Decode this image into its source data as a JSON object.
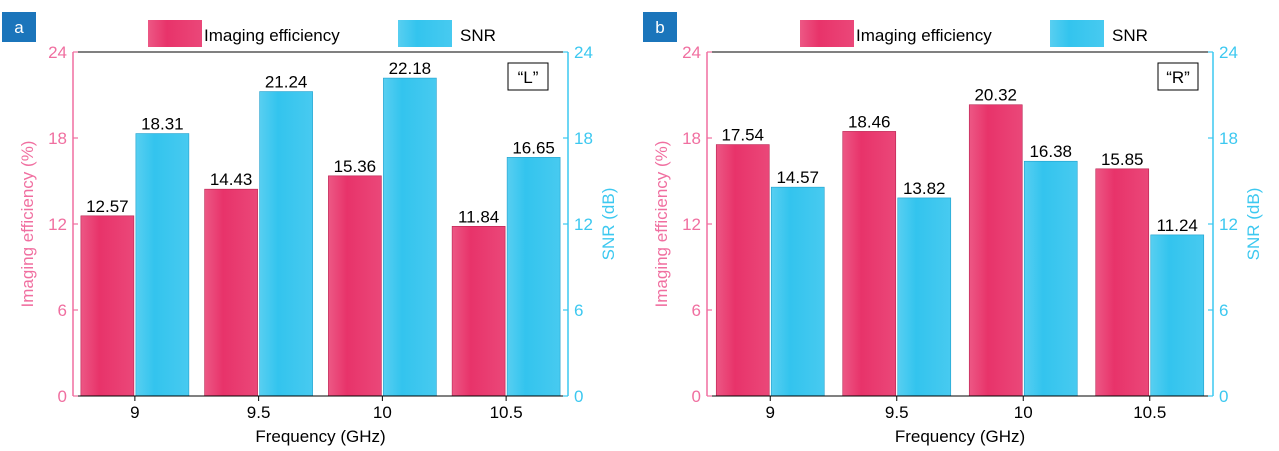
{
  "colors": {
    "imaging": "#e8336a",
    "imaging_axis": "#f06fa0",
    "snr": "#33c4ee",
    "snr_axis": "#3cc8f0",
    "panel_tag_bg": "#1b75bb"
  },
  "chart_data": [
    {
      "type": "bar",
      "panel_label": "a",
      "inset_label": "“L”",
      "categories": [
        "9",
        "9.5",
        "10",
        "10.5"
      ],
      "series": [
        {
          "name": "Imaging efficiency",
          "axis": "left",
          "values": [
            12.57,
            14.43,
            15.36,
            11.84
          ]
        },
        {
          "name": "SNR",
          "axis": "right",
          "values": [
            18.31,
            21.24,
            22.18,
            16.65
          ]
        }
      ],
      "data_labels": {
        "left": [
          "12.57",
          "14.43",
          "15.36",
          "11.84"
        ],
        "right": [
          "18.31",
          "21.24",
          "22.18",
          "16.65"
        ]
      },
      "xlabel": "Frequency (GHz)",
      "ylabel_left": "Imaging efficiency (%)",
      "ylabel_right": "SNR (dB)",
      "ylim_left": [
        0,
        24
      ],
      "ylim_right": [
        0,
        24
      ],
      "yticks": [
        "0",
        "6",
        "12",
        "18",
        "24"
      ],
      "legend": "top-center",
      "grid": false
    },
    {
      "type": "bar",
      "panel_label": "b",
      "inset_label": "“R”",
      "categories": [
        "9",
        "9.5",
        "10",
        "10.5"
      ],
      "series": [
        {
          "name": "Imaging efficiency",
          "axis": "left",
          "values": [
            17.54,
            18.46,
            20.32,
            15.85
          ]
        },
        {
          "name": "SNR",
          "axis": "right",
          "values": [
            14.57,
            13.82,
            16.38,
            11.24
          ]
        }
      ],
      "data_labels": {
        "left": [
          "17.54",
          "18.46",
          "20.32",
          "15.85"
        ],
        "right": [
          "14.57",
          "13.82",
          "16.38",
          "11.24"
        ]
      },
      "xlabel": "Frequency (GHz)",
      "ylabel_left": "Imaging efficiency (%)",
      "ylabel_right": "SNR (dB)",
      "ylim_left": [
        0,
        24
      ],
      "ylim_right": [
        0,
        24
      ],
      "yticks": [
        "0",
        "6",
        "12",
        "18",
        "24"
      ],
      "legend": "top-center",
      "grid": false
    }
  ]
}
